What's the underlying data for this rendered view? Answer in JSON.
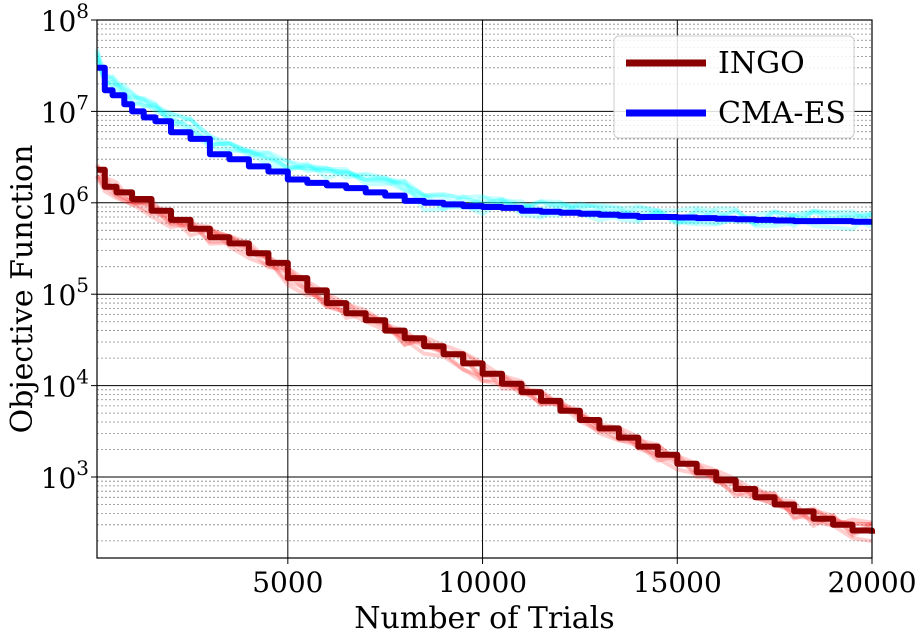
{
  "chart_data": {
    "type": "line",
    "xlabel": "Number of Trials",
    "ylabel": "Objective Function",
    "xlim": [
      100,
      20000
    ],
    "ylim": [
      130,
      100000000
    ],
    "yscale": "log",
    "grid": true,
    "legend_position": "top-right",
    "x_ticks": [
      {
        "value": 5000,
        "label": "5000"
      },
      {
        "value": 10000,
        "label": "10000"
      },
      {
        "value": 15000,
        "label": "15000"
      },
      {
        "value": 20000,
        "label": "20000"
      }
    ],
    "y_ticks": [
      {
        "value": 1000,
        "base": "10",
        "exp": "3"
      },
      {
        "value": 10000,
        "base": "10",
        "exp": "4"
      },
      {
        "value": 100000,
        "base": "10",
        "exp": "5"
      },
      {
        "value": 1000000,
        "base": "10",
        "exp": "6"
      },
      {
        "value": 10000000,
        "base": "10",
        "exp": "7"
      },
      {
        "value": 100000000,
        "base": "10",
        "exp": "8"
      }
    ],
    "series": [
      {
        "name": "INGO",
        "color": "#8b0000",
        "band_color": "#ff2020",
        "x": [
          100,
          300,
          600,
          1000,
          1500,
          2000,
          2500,
          3000,
          3500,
          4000,
          4500,
          5000,
          5500,
          6000,
          6500,
          7000,
          7500,
          8000,
          8500,
          9000,
          9500,
          10000,
          10500,
          11000,
          11500,
          12000,
          12500,
          13000,
          13500,
          14000,
          14500,
          15000,
          15500,
          16000,
          16500,
          17000,
          17500,
          18000,
          18500,
          19000,
          19500,
          20000
        ],
        "values": [
          2300000,
          1500000,
          1300000,
          1100000,
          820000,
          650000,
          520000,
          420000,
          360000,
          280000,
          220000,
          150000,
          110000,
          80000,
          62000,
          52000,
          40000,
          33000,
          27000,
          22000,
          17500,
          13500,
          10500,
          8500,
          6800,
          5300,
          4200,
          3400,
          2700,
          2150,
          1750,
          1400,
          1130,
          920,
          740,
          600,
          500,
          420,
          350,
          300,
          260,
          240
        ]
      },
      {
        "name": "CMA-ES",
        "color": "#0000ff",
        "band_color": "#00ffff",
        "x": [
          100,
          300,
          500,
          800,
          1000,
          1300,
          1600,
          2000,
          2500,
          3000,
          3500,
          4000,
          4500,
          5000,
          5500,
          6000,
          6500,
          7000,
          7500,
          8000,
          8500,
          9000,
          9500,
          10000,
          10500,
          11000,
          11500,
          12000,
          12500,
          13000,
          13500,
          14000,
          14500,
          15000,
          15500,
          16000,
          16500,
          17000,
          17500,
          18000,
          18500,
          19000,
          19500,
          20000
        ],
        "values": [
          30000000,
          17000000,
          15000000,
          12000000,
          10000000,
          8600000,
          7800000,
          5900000,
          5000000,
          3400000,
          3000000,
          2500000,
          2200000,
          1800000,
          1650000,
          1550000,
          1450000,
          1300000,
          1200000,
          1050000,
          1000000,
          960000,
          920000,
          900000,
          880000,
          820000,
          800000,
          780000,
          760000,
          740000,
          720000,
          700000,
          700000,
          690000,
          680000,
          670000,
          660000,
          650000,
          640000,
          630000,
          630000,
          630000,
          620000,
          620000
        ]
      }
    ]
  }
}
